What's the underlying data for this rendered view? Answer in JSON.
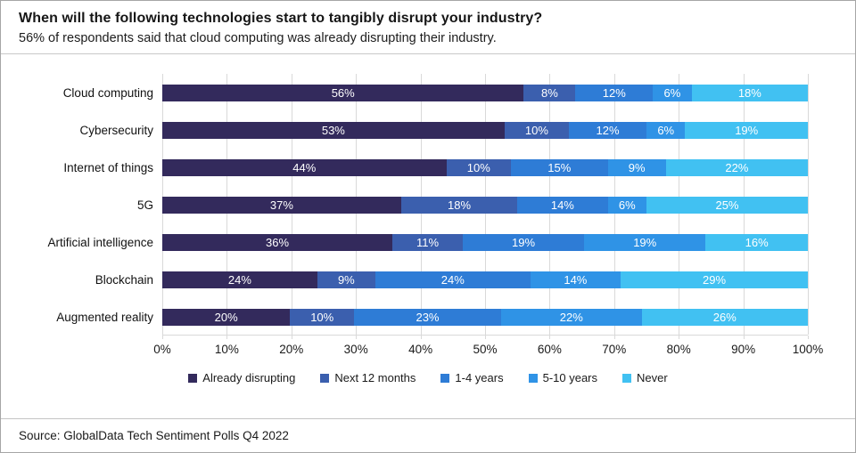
{
  "header": {
    "title": "When will the following technologies start to tangibly disrupt your industry?",
    "subtitle": "56% of respondents said that cloud computing was already disrupting their industry."
  },
  "chart_data": {
    "type": "bar",
    "orientation": "horizontal",
    "stacked": true,
    "unit": "percent",
    "title": "When will the following technologies start to tangibly disrupt your industry?",
    "xlabel": "",
    "ylabel": "",
    "xlim": [
      0,
      100
    ],
    "grid": "vertical",
    "gridline_color": "#d9d9d9",
    "legend_position": "bottom",
    "categories": [
      "Cloud computing",
      "Cybersecurity",
      "Internet of things",
      "5G",
      "Artificial intelligence",
      "Blockchain",
      "Augmented reality"
    ],
    "series": [
      {
        "name": "Already disrupting",
        "color": "#332a5c",
        "values": [
          56,
          53,
          44,
          37,
          36,
          24,
          20
        ]
      },
      {
        "name": "Next 12 months",
        "color": "#3b5fae",
        "values": [
          8,
          10,
          10,
          18,
          11,
          9,
          10
        ]
      },
      {
        "name": "1-4 years",
        "color": "#2e7cd6",
        "values": [
          12,
          12,
          15,
          14,
          19,
          24,
          23
        ]
      },
      {
        "name": "5-10 years",
        "color": "#2f93e6",
        "values": [
          6,
          6,
          9,
          6,
          19,
          14,
          22
        ]
      },
      {
        "name": "Never",
        "color": "#41c1f2",
        "values": [
          18,
          19,
          22,
          25,
          16,
          29,
          26
        ]
      }
    ],
    "x_axis_ticks": [
      "0%",
      "10%",
      "20%",
      "30%",
      "40%",
      "50%",
      "60%",
      "70%",
      "80%",
      "90%",
      "100%"
    ]
  },
  "footer": {
    "source": "Source: GlobalData Tech Sentiment Polls Q4 2022"
  }
}
